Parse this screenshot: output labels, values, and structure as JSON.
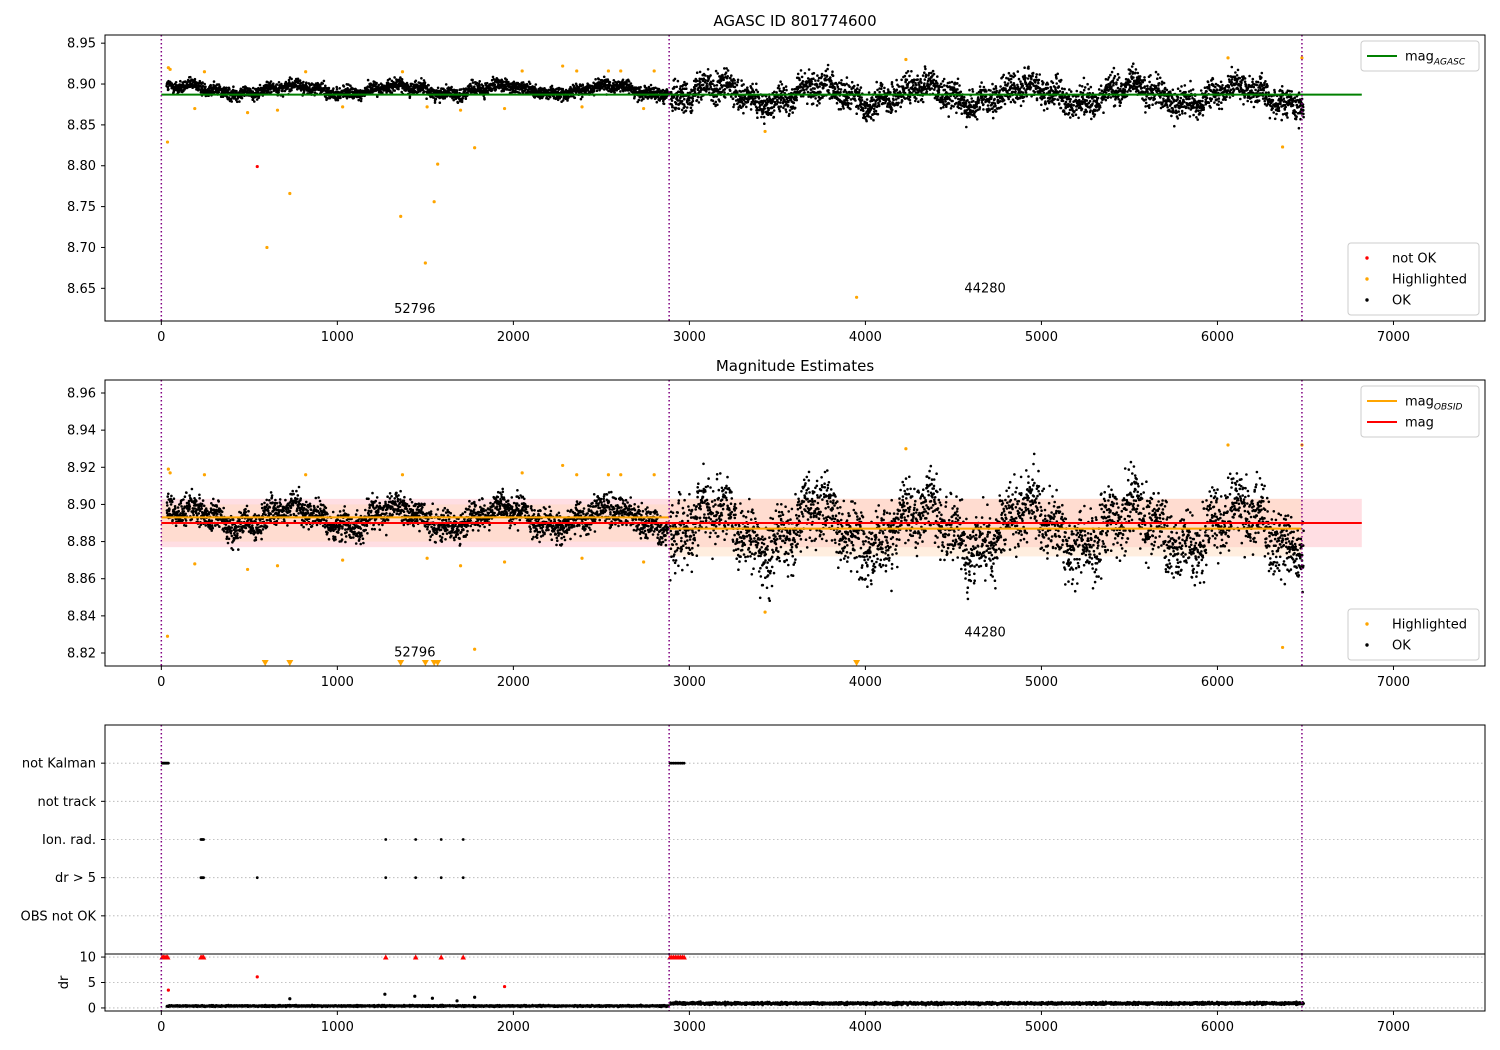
{
  "chart_data": [
    {
      "type": "scatter",
      "title": "AGASC ID 801774600",
      "xlim": [
        -320,
        7520
      ],
      "ylim": [
        8.61,
        8.96
      ],
      "xticks": [
        0,
        1000,
        2000,
        3000,
        4000,
        5000,
        6000,
        7000
      ],
      "yticks": [
        8.65,
        8.7,
        8.75,
        8.8,
        8.85,
        8.9,
        8.95
      ],
      "grid": false,
      "vlines": [
        0,
        2885,
        6480
      ],
      "annotations": [
        {
          "text": "52796",
          "x": 1440,
          "y": 8.62
        },
        {
          "text": "44280",
          "x": 4680,
          "y": 8.645
        }
      ],
      "legends": [
        {
          "position": "upper-right",
          "entries": [
            {
              "label": "mag",
              "sub": "AGASC",
              "kind": "line",
              "color": "#008000"
            }
          ]
        },
        {
          "position": "lower-right",
          "entries": [
            {
              "label": "not OK",
              "kind": "marker",
              "color": "#ff0000"
            },
            {
              "label": "Highlighted",
              "kind": "marker",
              "color": "#ffa500"
            },
            {
              "label": "OK",
              "kind": "marker",
              "color": "#000000"
            }
          ]
        }
      ],
      "reference_lines": [
        {
          "name": "mag_AGASC",
          "y": 8.887,
          "x": [
            0,
            6820
          ],
          "color": "#008000"
        }
      ],
      "ok_segments": [
        {
          "x": [
            30,
            2880
          ],
          "center": 8.893,
          "spread": 0.02
        },
        {
          "x": [
            2890,
            6490
          ],
          "center": 8.887,
          "spread": 0.045
        }
      ],
      "series": [
        {
          "name": "not OK",
          "color": "#ff0000",
          "points": [
            [
              545,
              8.799
            ]
          ]
        },
        {
          "name": "Highlighted",
          "color": "#ffa500",
          "points": [
            [
              35,
              8.829
            ],
            [
              40,
              8.92
            ],
            [
              50,
              8.918
            ],
            [
              190,
              8.87
            ],
            [
              245,
              8.915
            ],
            [
              490,
              8.865
            ],
            [
              600,
              8.7
            ],
            [
              660,
              8.868
            ],
            [
              730,
              8.766
            ],
            [
              820,
              8.915
            ],
            [
              1030,
              8.872
            ],
            [
              1360,
              8.738
            ],
            [
              1370,
              8.915
            ],
            [
              1500,
              8.681
            ],
            [
              1510,
              8.872
            ],
            [
              1550,
              8.756
            ],
            [
              1570,
              8.802
            ],
            [
              1700,
              8.868
            ],
            [
              1780,
              8.822
            ],
            [
              1950,
              8.87
            ],
            [
              2050,
              8.916
            ],
            [
              2280,
              8.922
            ],
            [
              2360,
              8.916
            ],
            [
              2390,
              8.872
            ],
            [
              2540,
              8.916
            ],
            [
              2610,
              8.916
            ],
            [
              2740,
              8.87
            ],
            [
              2800,
              8.916
            ],
            [
              3430,
              8.842
            ],
            [
              3950,
              8.639
            ],
            [
              4230,
              8.93
            ],
            [
              6060,
              8.932
            ],
            [
              6370,
              8.823
            ],
            [
              6480,
              8.932
            ]
          ]
        }
      ]
    },
    {
      "type": "scatter",
      "title": "Magnitude Estimates",
      "xlim": [
        -320,
        7520
      ],
      "ylim": [
        8.813,
        8.967
      ],
      "xticks": [
        0,
        1000,
        2000,
        3000,
        4000,
        5000,
        6000,
        7000
      ],
      "yticks": [
        8.82,
        8.84,
        8.86,
        8.88,
        8.9,
        8.92,
        8.94,
        8.96
      ],
      "grid": false,
      "vlines": [
        0,
        2885,
        6480
      ],
      "annotations": [
        {
          "text": "52796",
          "x": 1440,
          "y": 8.818
        },
        {
          "text": "44280",
          "x": 4680,
          "y": 8.829
        }
      ],
      "legends": [
        {
          "position": "upper-right",
          "entries": [
            {
              "label": "mag",
              "sub": "OBSID",
              "kind": "line",
              "color": "#ffa500"
            },
            {
              "label": "mag",
              "kind": "line",
              "color": "#ff0000"
            }
          ]
        },
        {
          "position": "lower-right",
          "entries": [
            {
              "label": "Highlighted",
              "kind": "marker",
              "color": "#ffa500"
            },
            {
              "label": "OK",
              "kind": "marker",
              "color": "#000000"
            }
          ]
        }
      ],
      "bands": [
        {
          "name": "mag",
          "x": [
            0,
            6820
          ],
          "y": [
            8.877,
            8.903
          ],
          "color": "#ffb6c1"
        },
        {
          "name": "mag_OBSID obs 1",
          "x": [
            0,
            2885
          ],
          "y": [
            8.88,
            8.9
          ],
          "color": "#ffdab9"
        },
        {
          "name": "mag_OBSID obs 2",
          "x": [
            2885,
            6480
          ],
          "y": [
            8.872,
            8.903
          ],
          "color": "#ffdab9"
        }
      ],
      "reference_lines": [
        {
          "name": "mag",
          "y": 8.89,
          "x": [
            0,
            6820
          ],
          "color": "#ff0000"
        },
        {
          "name": "mag_OBSID obs 1",
          "y": 8.893,
          "x": [
            0,
            2885
          ],
          "color": "#ffa500"
        },
        {
          "name": "mag_OBSID obs 2",
          "y": 8.887,
          "x": [
            2885,
            6480
          ],
          "color": "#ffa500"
        }
      ],
      "ok_segments": [
        {
          "x": [
            30,
            2880
          ],
          "center": 8.893,
          "spread": 0.02
        },
        {
          "x": [
            2890,
            6490
          ],
          "center": 8.887,
          "spread": 0.045
        }
      ],
      "series": [
        {
          "name": "Highlighted",
          "color": "#ffa500",
          "points": [
            [
              35,
              8.829
            ],
            [
              40,
              8.919
            ],
            [
              50,
              8.917
            ],
            [
              190,
              8.868
            ],
            [
              245,
              8.916
            ],
            [
              490,
              8.865
            ],
            [
              660,
              8.867
            ],
            [
              820,
              8.916
            ],
            [
              1030,
              8.87
            ],
            [
              1370,
              8.916
            ],
            [
              1510,
              8.871
            ],
            [
              1700,
              8.867
            ],
            [
              1780,
              8.822
            ],
            [
              1950,
              8.869
            ],
            [
              2050,
              8.917
            ],
            [
              2280,
              8.921
            ],
            [
              2360,
              8.916
            ],
            [
              2390,
              8.871
            ],
            [
              2540,
              8.916
            ],
            [
              2610,
              8.916
            ],
            [
              2740,
              8.869
            ],
            [
              2800,
              8.916
            ],
            [
              3430,
              8.842
            ],
            [
              4230,
              8.93
            ],
            [
              6060,
              8.932
            ],
            [
              6370,
              8.823
            ],
            [
              6480,
              8.932
            ]
          ]
        },
        {
          "name": "Highlighted (below axis)",
          "color": "#ffa500",
          "marker": "triangle-down",
          "points": [
            [
              590,
              8.813
            ],
            [
              730,
              8.813
            ],
            [
              1360,
              8.813
            ],
            [
              1500,
              8.813
            ],
            [
              1550,
              8.813
            ],
            [
              1570,
              8.813
            ],
            [
              3950,
              8.813
            ]
          ]
        }
      ]
    },
    {
      "type": "scatter",
      "title": "",
      "xlim": [
        -320,
        7520
      ],
      "ylim": [
        0,
        6
      ],
      "xticks": [],
      "yticks": [
        1,
        2,
        3,
        4,
        5
      ],
      "ytick_labels": [
        "OBS not OK",
        "dr > 5",
        "Ion. rad.",
        "not track",
        "not Kalman"
      ],
      "grid": true,
      "vlines": [
        0,
        2885,
        6480
      ],
      "series": [
        {
          "name": "not Kalman",
          "y": 5,
          "color": "#000000",
          "x": [
            5,
            10,
            15,
            20,
            25,
            30,
            35,
            40,
            2890,
            2900,
            2910,
            2920,
            2930,
            2940,
            2950,
            2960,
            2970
          ]
        },
        {
          "name": "not track",
          "y": 4,
          "color": "#000000",
          "x": []
        },
        {
          "name": "Ion. rad.",
          "y": 3,
          "color": "#000000",
          "x": [
            225,
            230,
            235,
            240,
            1275,
            1445,
            1590,
            1715
          ]
        },
        {
          "name": "dr > 5",
          "y": 2,
          "color": "#000000",
          "x": [
            225,
            230,
            235,
            240,
            545,
            1275,
            1445,
            1590,
            1715
          ]
        },
        {
          "name": "OBS not OK",
          "y": 1,
          "color": "#000000",
          "x": []
        }
      ]
    },
    {
      "type": "scatter",
      "title": "",
      "ylabel": "dr",
      "xlim": [
        -320,
        7520
      ],
      "ylim": [
        -0.6,
        10.6
      ],
      "xticks": [
        0,
        1000,
        2000,
        3000,
        4000,
        5000,
        6000,
        7000
      ],
      "yticks": [
        0,
        5,
        10
      ],
      "grid": true,
      "vlines": [
        0,
        2885,
        6480
      ],
      "ok_segments": [
        {
          "x": [
            30,
            2880
          ],
          "center": 0.4,
          "spread": 0.35
        },
        {
          "x": [
            2890,
            6490
          ],
          "center": 0.9,
          "spread": 0.6
        }
      ],
      "series": [
        {
          "name": "dr scattered",
          "color": "#000000",
          "points": [
            [
              730,
              1.8
            ],
            [
              1270,
              2.7
            ],
            [
              1440,
              2.3
            ],
            [
              1540,
              1.9
            ],
            [
              1780,
              2.1
            ],
            [
              1680,
              1.4
            ]
          ]
        },
        {
          "name": "dr flagged",
          "color": "#ff0000",
          "points": [
            [
              40,
              3.5
            ],
            [
              545,
              6.1
            ],
            [
              1950,
              4.2
            ]
          ]
        },
        {
          "name": "dr capped",
          "color": "#ff0000",
          "marker": "triangle-up",
          "y": 10,
          "x": [
            5,
            12,
            20,
            28,
            36,
            225,
            232,
            240,
            1275,
            1445,
            1590,
            1715,
            2890,
            2900,
            2910,
            2920,
            2930,
            2940,
            2950,
            2960,
            2970
          ]
        }
      ]
    }
  ]
}
